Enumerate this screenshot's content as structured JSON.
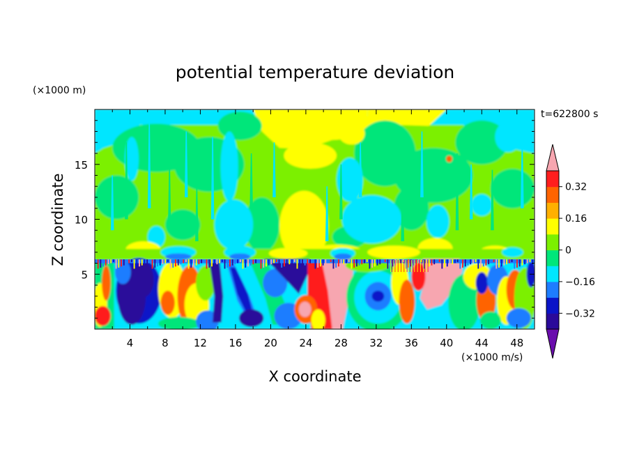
{
  "chart_data": {
    "type": "heatmap",
    "title": "potential temperature deviation",
    "xlabel": "X coordinate",
    "ylabel": "Z coordinate",
    "x_units": "(×1000 m/s)",
    "y_units": "(×1000 m)",
    "time_label": "t=622800 s",
    "xlim": [
      0,
      50
    ],
    "ylim": [
      0,
      20
    ],
    "x_ticks": [
      4,
      8,
      12,
      16,
      20,
      24,
      28,
      32,
      36,
      40,
      44,
      48
    ],
    "y_ticks": [
      5,
      10,
      15
    ],
    "colorbar": {
      "levels": [
        -0.4,
        -0.32,
        -0.24,
        -0.16,
        -0.08,
        0,
        0.08,
        0.16,
        0.24,
        0.32,
        0.4
      ],
      "tick_labels": [
        "0.32",
        "0.16",
        "0",
        "−0.16",
        "−0.32"
      ],
      "tick_values": [
        0.32,
        0.16,
        0,
        -0.16,
        -0.32
      ],
      "colors": [
        "#6a0dad",
        "#2a0a9a",
        "#0a14c8",
        "#1e7dff",
        "#00e6ff",
        "#00e67a",
        "#7cf000",
        "#ffff00",
        "#ffb000",
        "#ff6400",
        "#ff1e1e",
        "#f7a6b0"
      ],
      "extend": "both"
    }
  }
}
